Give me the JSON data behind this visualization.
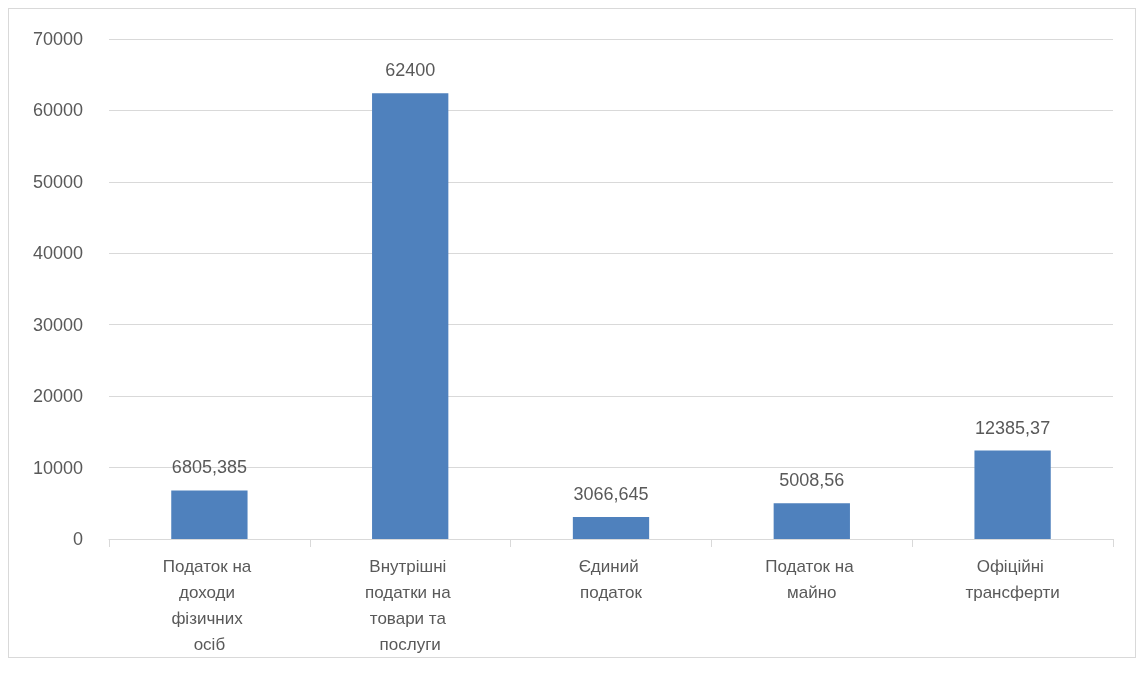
{
  "chart_data": {
    "type": "bar",
    "categories": [
      "Податок на доходи фізичних осіб",
      "Внутрішні податки на товари та послуги",
      "Єдиний податок",
      "Податок на майно",
      "Офіційні трансферти"
    ],
    "values": [
      6805.385,
      62400,
      3066.645,
      5008.56,
      12385.37
    ],
    "value_labels": [
      "6805,385",
      "62400",
      "3066,645",
      "5008,56",
      "12385,37"
    ],
    "color": "#4f81bd",
    "ylim": [
      0,
      70000
    ],
    "yticks": [
      0,
      10000,
      20000,
      30000,
      40000,
      50000,
      60000,
      70000
    ],
    "grid": "y"
  }
}
